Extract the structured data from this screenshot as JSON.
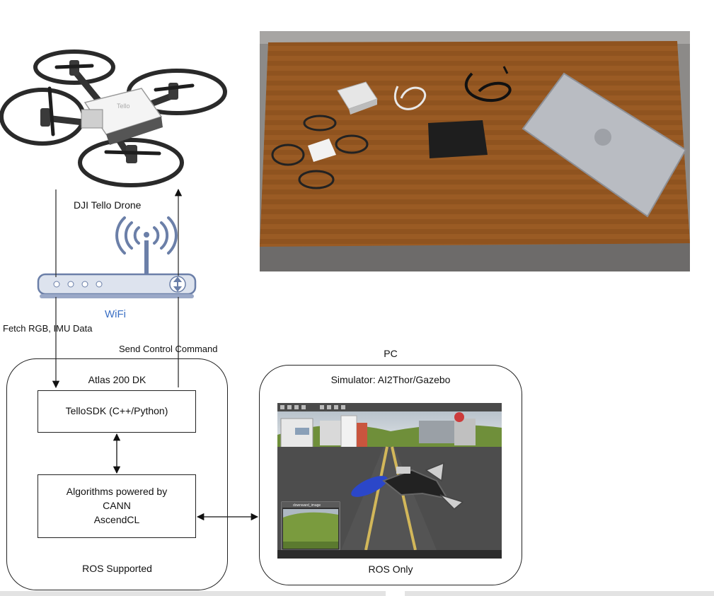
{
  "drone": {
    "label": "DJI Tello Drone",
    "body_brand": "Tello"
  },
  "router": {
    "label": "WiFi"
  },
  "links": {
    "fetch": "Fetch RGB, IMU Data",
    "send": "Send Control Command"
  },
  "atlas": {
    "title": "Atlas 200 DK",
    "sdk": "TelloSDK (C++/Python)",
    "algo_lines": [
      "Algorithms powered by",
      "CANN",
      "AscendCL"
    ],
    "footer": "ROS Supported"
  },
  "pc": {
    "header": "PC",
    "title": "Simulator: AI2Thor/Gazebo",
    "footer": "ROS Only",
    "inset_title": "downward_image"
  },
  "colors": {
    "router_fill": "#dde3ee",
    "router_stroke": "#6b7fa8",
    "wifi_text": "#3a6fc4",
    "table": "#9a5b24"
  }
}
